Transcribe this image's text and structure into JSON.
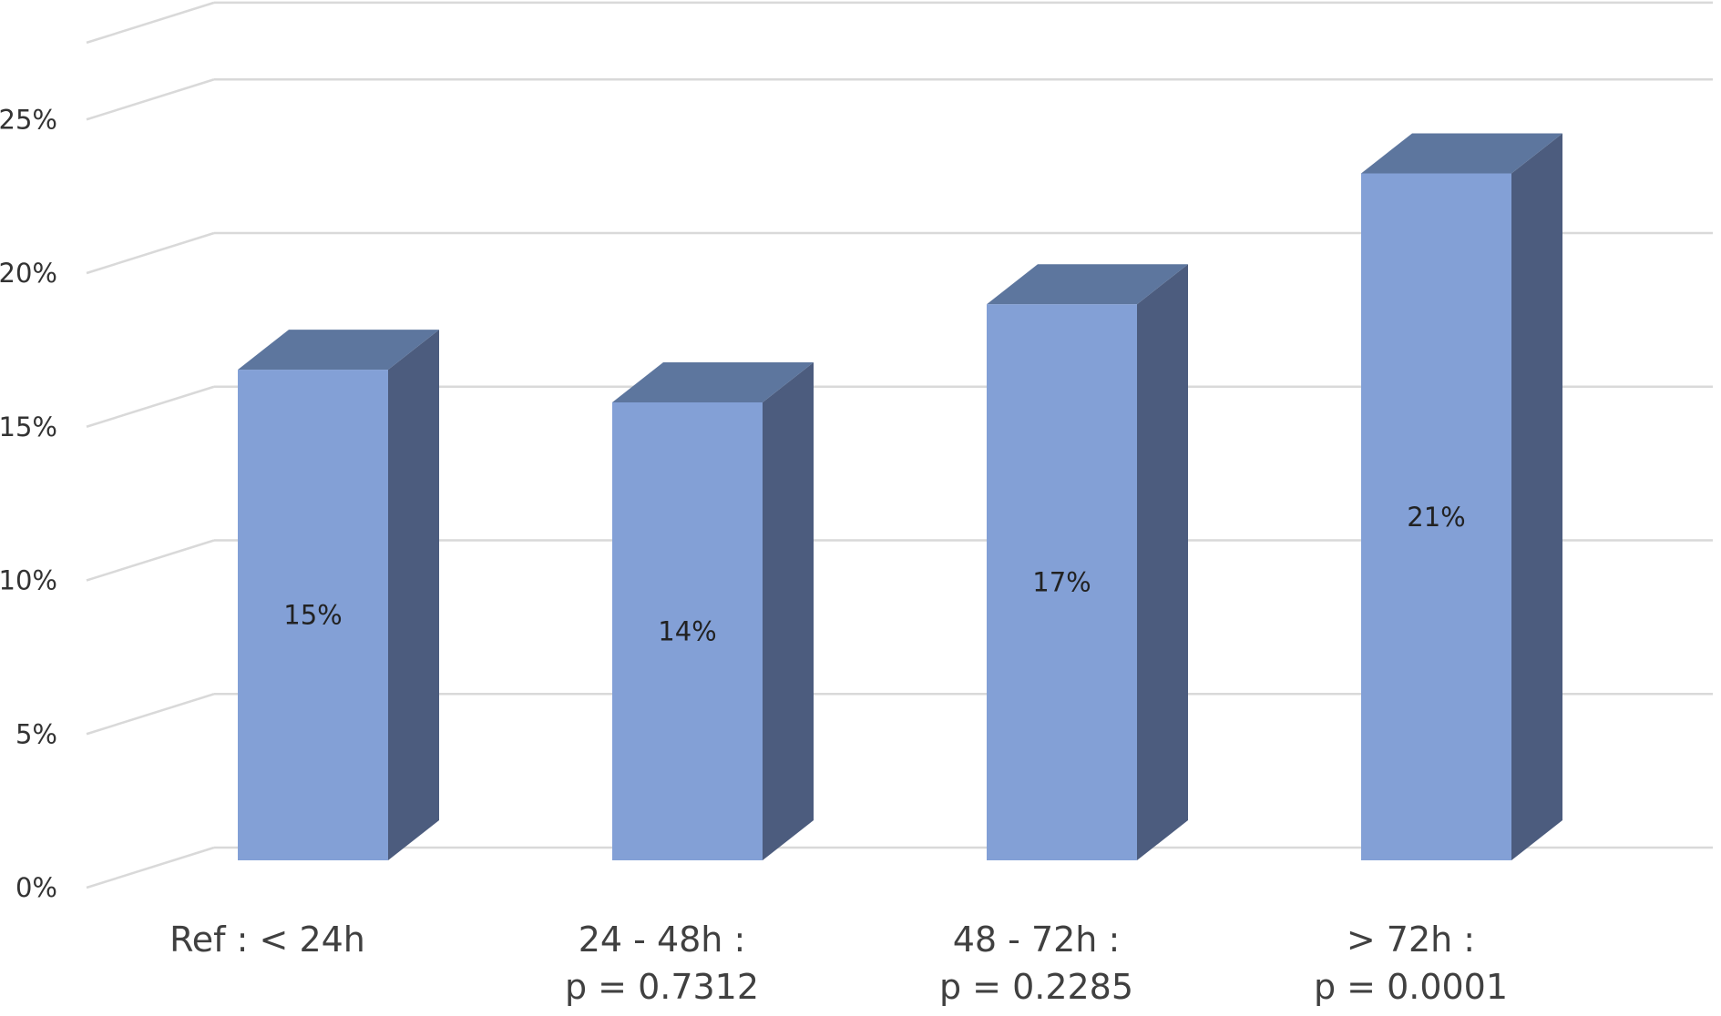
{
  "chart_data": {
    "type": "bar",
    "style": "3d-column",
    "categories": [
      "Ref : < 24h",
      "24 - 48h :",
      "48 - 72h :",
      "> 72h :"
    ],
    "category_sublabels": [
      "",
      "p = 0.7312",
      "p = 0.2285",
      "p = 0.0001"
    ],
    "values": [
      15,
      14,
      17,
      21
    ],
    "data_labels": [
      "15%",
      "14%",
      "17%",
      "21%"
    ],
    "y_ticks": [
      "0%",
      "5%",
      "10%",
      "15%",
      "20%",
      "25%"
    ],
    "y_tick_values": [
      0,
      5,
      10,
      15,
      20,
      25
    ],
    "ylim": [
      0,
      27.5
    ],
    "grid": true,
    "title": "",
    "xlabel": "",
    "ylabel": "",
    "colors": {
      "front": "#83a0d6",
      "top": "#5d769e",
      "side": "#4c5c7e",
      "grid": "#d9d9d9"
    }
  }
}
